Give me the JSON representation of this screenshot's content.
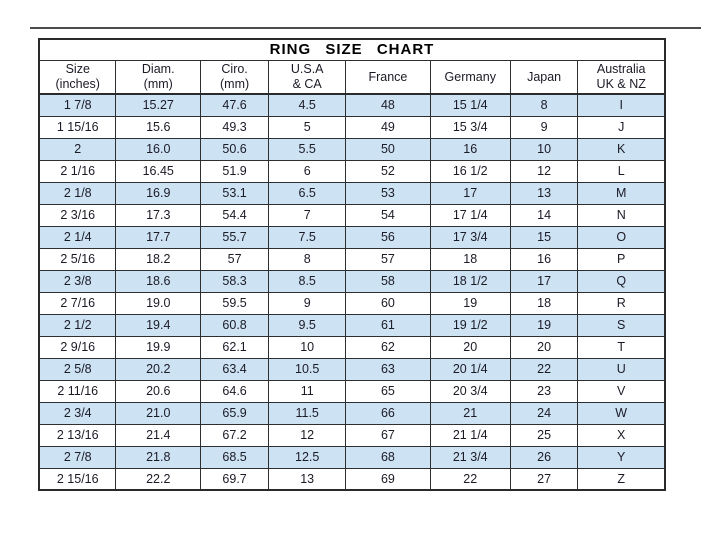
{
  "page_title": "RING SIZE CHART",
  "chart_data": {
    "type": "table",
    "title": "RING SIZE CHART",
    "columns": [
      "Size\n(inches)",
      "Diam.\n(mm)",
      "Ciro.\n(mm)",
      "U.S.A\n& CA",
      "France",
      "Germany",
      "Japan",
      "Australia\nUK & NZ"
    ],
    "rows": [
      [
        "1 7/8",
        "15.27",
        "47.6",
        "4.5",
        "48",
        "15 1/4",
        "8",
        "I"
      ],
      [
        "1 15/16",
        "15.6",
        "49.3",
        "5",
        "49",
        "15 3/4",
        "9",
        "J"
      ],
      [
        "2",
        "16.0",
        "50.6",
        "5.5",
        "50",
        "16",
        "10",
        "K"
      ],
      [
        "2 1/16",
        "16.45",
        "51.9",
        "6",
        "52",
        "16 1/2",
        "12",
        "L"
      ],
      [
        "2 1/8",
        "16.9",
        "53.1",
        "6.5",
        "53",
        "17",
        "13",
        "M"
      ],
      [
        "2 3/16",
        "17.3",
        "54.4",
        "7",
        "54",
        "17 1/4",
        "14",
        "N"
      ],
      [
        "2 1/4",
        "17.7",
        "55.7",
        "7.5",
        "56",
        "17 3/4",
        "15",
        "O"
      ],
      [
        "2 5/16",
        "18.2",
        "57",
        "8",
        "57",
        "18",
        "16",
        "P"
      ],
      [
        "2 3/8",
        "18.6",
        "58.3",
        "8.5",
        "58",
        "18 1/2",
        "17",
        "Q"
      ],
      [
        "2 7/16",
        "19.0",
        "59.5",
        "9",
        "60",
        "19",
        "18",
        "R"
      ],
      [
        "2 1/2",
        "19.4",
        "60.8",
        "9.5",
        "61",
        "19 1/2",
        "19",
        "S"
      ],
      [
        "2 9/16",
        "19.9",
        "62.1",
        "10",
        "62",
        "20",
        "20",
        "T"
      ],
      [
        "2 5/8",
        "20.2",
        "63.4",
        "10.5",
        "63",
        "20 1/4",
        "22",
        "U"
      ],
      [
        "2 11/16",
        "20.6",
        "64.6",
        "11",
        "65",
        "20 3/4",
        "23",
        "V"
      ],
      [
        "2 3/4",
        "21.0",
        "65.9",
        "11.5",
        "66",
        "21",
        "24",
        "W"
      ],
      [
        "2 13/16",
        "21.4",
        "67.2",
        "12",
        "67",
        "21 1/4",
        "25",
        "X"
      ],
      [
        "2 7/8",
        "21.8",
        "68.5",
        "12.5",
        "68",
        "21 3/4",
        "26",
        "Y"
      ],
      [
        "2 15/16",
        "22.2",
        "69.7",
        "13",
        "69",
        "22",
        "27",
        "Z"
      ]
    ]
  },
  "colors": {
    "row_alternate": "#cde2f3",
    "row_base": "#ffffff",
    "grid_border": "#2a2a2a",
    "text": "#1b1b26",
    "background": "#ffffff"
  }
}
